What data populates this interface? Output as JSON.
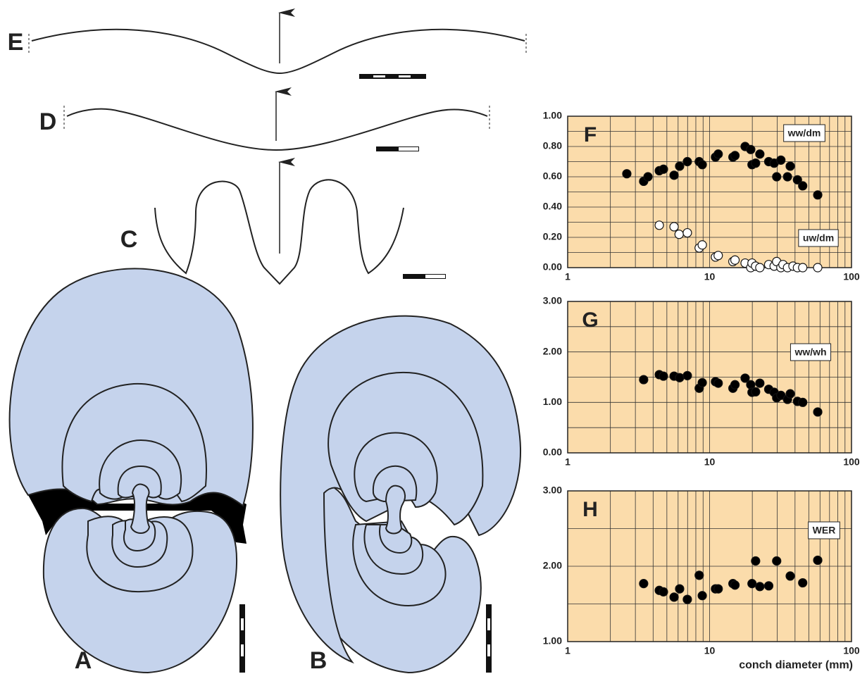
{
  "figure_labels": [
    "E",
    "D",
    "C",
    "A",
    "B"
  ],
  "chart_data": [
    {
      "type": "scatter",
      "title": "F",
      "xlog": true,
      "xlim": [
        1,
        100
      ],
      "xticks": [
        1,
        10,
        100
      ],
      "ylim": [
        0,
        1
      ],
      "yticks": [
        {
          "value": 0,
          "label": "0.00"
        },
        {
          "value": 0.2,
          "label": "0.20"
        },
        {
          "value": 0.4,
          "label": "0.40"
        },
        {
          "value": 0.6,
          "label": "0.60"
        },
        {
          "value": 0.8,
          "label": "0.80"
        },
        {
          "value": 1,
          "label": "1.00"
        }
      ],
      "grid": true,
      "background": "#fbdcab",
      "series": [
        {
          "name": "ww/dm",
          "color": "#000000",
          "x": [
            2.61,
            3.43,
            3.68,
            4.42,
            4.73,
            5.62,
            6.15,
            6.97,
            8.45,
            8.88,
            11.0,
            11.5,
            14.6,
            15.1,
            17.8,
            19.5,
            19.9,
            21.1,
            22.6,
            26.1,
            28.5,
            29.7,
            31.8,
            35.4,
            37.0,
            41.6,
            45.3,
            57.8
          ],
          "values": [
            0.62,
            0.57,
            0.6,
            0.64,
            0.65,
            0.61,
            0.67,
            0.7,
            0.7,
            0.68,
            0.73,
            0.75,
            0.73,
            0.74,
            0.8,
            0.78,
            0.68,
            0.69,
            0.75,
            0.7,
            0.69,
            0.6,
            0.71,
            0.6,
            0.67,
            0.58,
            0.54,
            0.48
          ]
        },
        {
          "name": "uw/dm",
          "color": "#ffffff",
          "x": [
            4.42,
            5.62,
            6.1,
            6.97,
            8.45,
            8.88,
            11.0,
            11.5,
            14.6,
            15.1,
            17.8,
            19.5,
            19.9,
            21.1,
            22.6,
            26.1,
            28.5,
            29.7,
            31.8,
            32.9,
            35.4,
            38.7,
            41.6,
            45.3,
            57.8
          ],
          "values": [
            0.28,
            0.27,
            0.22,
            0.23,
            0.13,
            0.15,
            0.07,
            0.08,
            0.04,
            0.05,
            0.03,
            0.0,
            0.03,
            0.01,
            0.0,
            0.02,
            0.01,
            0.04,
            0.0,
            0.02,
            0.0,
            0.01,
            0.0,
            0.0,
            0.0
          ]
        }
      ]
    },
    {
      "type": "scatter",
      "title": "G",
      "xlog": true,
      "xlim": [
        1,
        100
      ],
      "xticks": [
        1,
        10,
        100
      ],
      "ylim": [
        0,
        3
      ],
      "yticks": [
        {
          "value": 0,
          "label": "0.00"
        },
        {
          "value": 1,
          "label": "1.00"
        },
        {
          "value": 2,
          "label": "2.00"
        },
        {
          "value": 3,
          "label": "3.00"
        }
      ],
      "grid": true,
      "background": "#fbdcab",
      "series": [
        {
          "name": "ww/wh",
          "color": "#000000",
          "x": [
            3.43,
            4.42,
            4.73,
            5.62,
            6.15,
            6.97,
            8.45,
            8.88,
            11.0,
            11.5,
            14.6,
            15.1,
            17.8,
            19.5,
            19.9,
            21.1,
            22.6,
            26.1,
            28.5,
            29.7,
            31.8,
            35.4,
            37.0,
            41.6,
            45.3,
            57.8
          ],
          "values": [
            1.45,
            1.55,
            1.52,
            1.52,
            1.49,
            1.53,
            1.28,
            1.39,
            1.41,
            1.38,
            1.28,
            1.35,
            1.48,
            1.35,
            1.2,
            1.21,
            1.38,
            1.26,
            1.2,
            1.09,
            1.14,
            1.06,
            1.17,
            1.02,
            1.0,
            0.81
          ]
        }
      ]
    },
    {
      "type": "scatter",
      "title": "H",
      "xlabel": "conch diameter (mm)",
      "xlog": true,
      "xlim": [
        1,
        100
      ],
      "xticks": [
        1,
        10,
        100
      ],
      "ylim": [
        1,
        3
      ],
      "yticks": [
        {
          "value": 1,
          "label": "1.00"
        },
        {
          "value": 2,
          "label": "2.00"
        },
        {
          "value": 3,
          "label": "3.00"
        }
      ],
      "grid": true,
      "background": "#fbdcab",
      "series": [
        {
          "name": "WER",
          "color": "#000000",
          "x": [
            3.43,
            4.42,
            4.73,
            5.62,
            6.15,
            6.97,
            8.45,
            8.88,
            11.0,
            11.5,
            14.6,
            15.1,
            19.9,
            21.1,
            22.6,
            26.1,
            29.7,
            37.0,
            45.3,
            57.8
          ],
          "values": [
            1.77,
            1.68,
            1.66,
            1.59,
            1.7,
            1.56,
            1.88,
            1.61,
            1.7,
            1.7,
            1.77,
            1.75,
            1.77,
            2.07,
            1.73,
            1.74,
            2.07,
            1.87,
            1.78,
            2.08
          ]
        }
      ]
    }
  ]
}
